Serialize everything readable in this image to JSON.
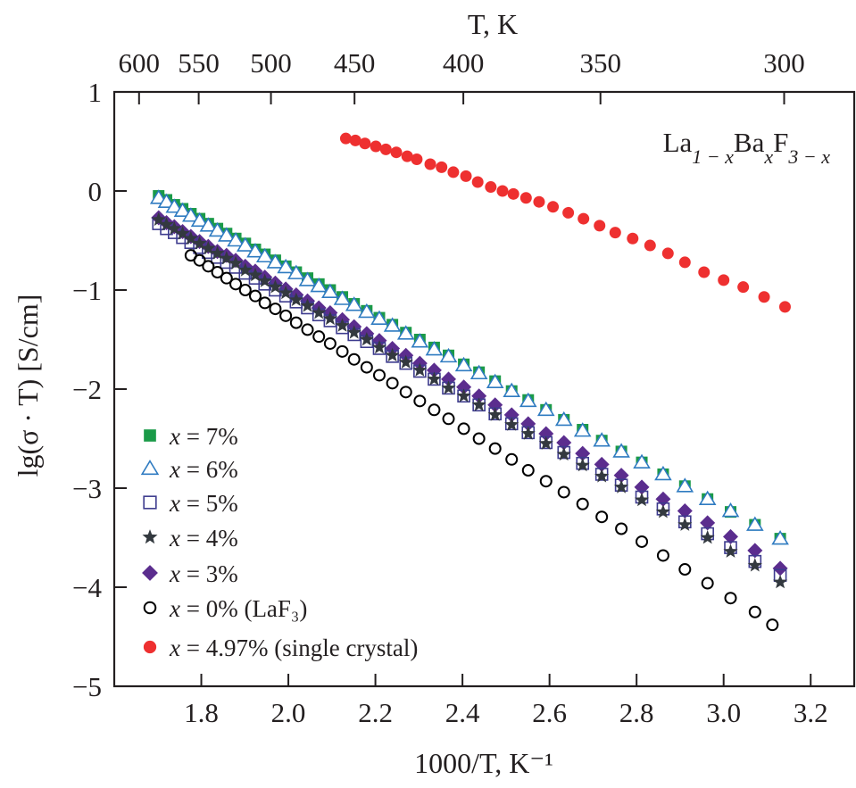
{
  "chart_data": {
    "type": "scatter",
    "title": "",
    "xlabel": "1000/T, K⁻¹",
    "ylabel": "lg(σ · T) [S/cm]",
    "top_xlabel": "T, K",
    "xlim": [
      1.6,
      3.3
    ],
    "ylim": [
      -5,
      1
    ],
    "grid": false,
    "legend_placement": "bottom-left",
    "xticks": [
      "1.8",
      "2.0",
      "2.2",
      "2.4",
      "2.6",
      "2.8",
      "3.0",
      "3.2"
    ],
    "yticks": [
      "1",
      "0",
      "−1",
      "−2",
      "−3",
      "−4",
      "−5"
    ],
    "top_ticks": [
      {
        "label": "600",
        "at": 1.657
      },
      {
        "label": "550",
        "at": 1.794
      },
      {
        "label": "500",
        "at": 1.96
      },
      {
        "label": "450",
        "at": 2.152
      },
      {
        "label": "400",
        "at": 2.402
      },
      {
        "label": "350",
        "at": 2.717
      },
      {
        "label": "300",
        "at": 3.139
      }
    ],
    "annotation": [
      {
        "base": "La",
        "sub": "1 − x"
      },
      {
        "base": "Ba",
        "sub": "x"
      },
      {
        "base": "F",
        "sub": "3 − x"
      }
    ],
    "series": [
      {
        "name": "x = 7%",
        "marker": "square-filled",
        "color": "#1a9a48",
        "x": [
          1.702,
          1.72,
          1.738,
          1.757,
          1.776,
          1.796,
          1.816,
          1.837,
          1.858,
          1.879,
          1.901,
          1.924,
          1.946,
          1.97,
          1.994,
          2.018,
          2.044,
          2.07,
          2.096,
          2.124,
          2.151,
          2.18,
          2.209,
          2.239,
          2.27,
          2.302,
          2.335,
          2.368,
          2.403,
          2.438,
          2.475,
          2.513,
          2.551,
          2.592,
          2.633,
          2.676,
          2.72,
          2.765,
          2.812,
          2.861,
          2.911,
          2.963,
          3.016,
          3.072,
          3.13
        ],
        "y": [
          -0.05,
          -0.09,
          -0.14,
          -0.18,
          -0.23,
          -0.28,
          -0.33,
          -0.38,
          -0.43,
          -0.48,
          -0.53,
          -0.59,
          -0.64,
          -0.7,
          -0.76,
          -0.82,
          -0.88,
          -0.94,
          -1.0,
          -1.07,
          -1.14,
          -1.21,
          -1.28,
          -1.35,
          -1.43,
          -1.5,
          -1.58,
          -1.66,
          -1.75,
          -1.83,
          -1.92,
          -2.02,
          -2.11,
          -2.21,
          -2.31,
          -2.41,
          -2.52,
          -2.63,
          -2.74,
          -2.86,
          -2.98,
          -3.11,
          -3.24,
          -3.37,
          -3.51
        ]
      },
      {
        "name": "x = 6%",
        "marker": "triangle-open",
        "color": "#2f7bc1",
        "x": [
          1.702,
          1.72,
          1.738,
          1.757,
          1.776,
          1.796,
          1.816,
          1.837,
          1.858,
          1.879,
          1.901,
          1.924,
          1.946,
          1.97,
          1.994,
          2.018,
          2.044,
          2.07,
          2.096,
          2.124,
          2.151,
          2.18,
          2.209,
          2.239,
          2.27,
          2.302,
          2.335,
          2.368,
          2.403,
          2.438,
          2.475,
          2.513,
          2.551,
          2.592,
          2.633,
          2.676,
          2.72,
          2.765,
          2.812,
          2.861,
          2.911,
          2.963,
          3.016,
          3.072,
          3.13
        ],
        "y": [
          -0.07,
          -0.11,
          -0.16,
          -0.2,
          -0.25,
          -0.3,
          -0.35,
          -0.4,
          -0.45,
          -0.5,
          -0.55,
          -0.61,
          -0.66,
          -0.72,
          -0.77,
          -0.83,
          -0.9,
          -0.96,
          -1.02,
          -1.09,
          -1.15,
          -1.22,
          -1.29,
          -1.36,
          -1.44,
          -1.52,
          -1.6,
          -1.67,
          -1.76,
          -1.84,
          -1.93,
          -2.02,
          -2.12,
          -2.21,
          -2.31,
          -2.42,
          -2.52,
          -2.63,
          -2.74,
          -2.86,
          -2.98,
          -3.11,
          -3.23,
          -3.37,
          -3.51
        ]
      },
      {
        "name": "x = 5%",
        "marker": "square-open",
        "color": "#3d3b8e",
        "x": [
          1.702,
          1.72,
          1.738,
          1.757,
          1.776,
          1.796,
          1.816,
          1.837,
          1.858,
          1.879,
          1.901,
          1.924,
          1.946,
          1.97,
          1.994,
          2.018,
          2.044,
          2.07,
          2.096,
          2.124,
          2.151,
          2.18,
          2.209,
          2.239,
          2.27,
          2.302,
          2.335,
          2.368,
          2.403,
          2.438,
          2.475,
          2.513,
          2.551,
          2.592,
          2.633,
          2.676,
          2.72,
          2.765,
          2.812,
          2.861,
          2.911,
          2.963,
          3.016,
          3.072,
          3.13
        ],
        "y": [
          -0.33,
          -0.38,
          -0.42,
          -0.47,
          -0.52,
          -0.57,
          -0.62,
          -0.67,
          -0.72,
          -0.77,
          -0.83,
          -0.88,
          -0.94,
          -1.0,
          -1.06,
          -1.12,
          -1.18,
          -1.25,
          -1.31,
          -1.38,
          -1.45,
          -1.52,
          -1.59,
          -1.67,
          -1.74,
          -1.82,
          -1.9,
          -1.99,
          -2.07,
          -2.16,
          -2.25,
          -2.35,
          -2.44,
          -2.54,
          -2.64,
          -2.75,
          -2.86,
          -2.97,
          -3.09,
          -3.21,
          -3.34,
          -3.46,
          -3.6,
          -3.74,
          -3.88
        ]
      },
      {
        "name": "x = 4%",
        "marker": "star-filled",
        "color": "#33393f",
        "x": [
          1.702,
          1.72,
          1.738,
          1.757,
          1.776,
          1.796,
          1.816,
          1.837,
          1.858,
          1.879,
          1.901,
          1.924,
          1.946,
          1.97,
          1.994,
          2.018,
          2.044,
          2.07,
          2.096,
          2.124,
          2.151,
          2.18,
          2.209,
          2.239,
          2.27,
          2.302,
          2.335,
          2.368,
          2.403,
          2.438,
          2.475,
          2.513,
          2.551,
          2.592,
          2.633,
          2.676,
          2.72,
          2.765,
          2.812,
          2.861,
          2.911,
          2.963,
          3.016,
          3.072,
          3.13
        ],
        "y": [
          -0.29,
          -0.34,
          -0.38,
          -0.43,
          -0.48,
          -0.53,
          -0.58,
          -0.63,
          -0.68,
          -0.73,
          -0.8,
          -0.85,
          -0.91,
          -0.97,
          -1.03,
          -1.1,
          -1.16,
          -1.23,
          -1.29,
          -1.36,
          -1.43,
          -1.5,
          -1.58,
          -1.66,
          -1.73,
          -1.81,
          -1.9,
          -1.99,
          -2.07,
          -2.16,
          -2.26,
          -2.36,
          -2.45,
          -2.55,
          -2.66,
          -2.77,
          -2.88,
          -2.99,
          -3.12,
          -3.24,
          -3.37,
          -3.5,
          -3.64,
          -3.78,
          -3.95
        ]
      },
      {
        "name": "x = 3%",
        "marker": "diamond-filled",
        "color": "#5b2d8e",
        "x": [
          1.702,
          1.72,
          1.738,
          1.757,
          1.776,
          1.796,
          1.816,
          1.837,
          1.858,
          1.879,
          1.901,
          1.924,
          1.946,
          1.97,
          1.994,
          2.018,
          2.044,
          2.07,
          2.096,
          2.124,
          2.151,
          2.18,
          2.209,
          2.239,
          2.27,
          2.302,
          2.335,
          2.368,
          2.403,
          2.438,
          2.475,
          2.513,
          2.551,
          2.592,
          2.633,
          2.676,
          2.72,
          2.765,
          2.812,
          2.861,
          2.911,
          2.963,
          3.016,
          3.072,
          3.13
        ],
        "y": [
          -0.27,
          -0.32,
          -0.36,
          -0.41,
          -0.46,
          -0.51,
          -0.56,
          -0.61,
          -0.65,
          -0.7,
          -0.76,
          -0.81,
          -0.87,
          -0.93,
          -0.99,
          -1.05,
          -1.11,
          -1.18,
          -1.23,
          -1.3,
          -1.37,
          -1.44,
          -1.51,
          -1.59,
          -1.66,
          -1.74,
          -1.81,
          -1.9,
          -1.98,
          -2.07,
          -2.16,
          -2.26,
          -2.35,
          -2.45,
          -2.54,
          -2.65,
          -2.76,
          -2.87,
          -2.99,
          -3.11,
          -3.23,
          -3.35,
          -3.49,
          -3.63,
          -3.81
        ]
      },
      {
        "name": "x = 0% (LaF₃)",
        "marker": "circle-open",
        "color": "#000000",
        "x": [
          1.776,
          1.796,
          1.816,
          1.837,
          1.858,
          1.879,
          1.901,
          1.924,
          1.946,
          1.97,
          1.994,
          2.018,
          2.044,
          2.07,
          2.096,
          2.124,
          2.151,
          2.18,
          2.209,
          2.239,
          2.27,
          2.302,
          2.335,
          2.368,
          2.403,
          2.438,
          2.475,
          2.513,
          2.551,
          2.592,
          2.633,
          2.676,
          2.72,
          2.765,
          2.812,
          2.861,
          2.911,
          2.963,
          3.016,
          3.072,
          3.112
        ],
        "y": [
          -0.65,
          -0.7,
          -0.76,
          -0.82,
          -0.88,
          -0.94,
          -1.0,
          -1.06,
          -1.13,
          -1.19,
          -1.26,
          -1.33,
          -1.4,
          -1.47,
          -1.54,
          -1.62,
          -1.7,
          -1.78,
          -1.86,
          -1.94,
          -2.03,
          -2.12,
          -2.21,
          -2.3,
          -2.4,
          -2.5,
          -2.6,
          -2.71,
          -2.82,
          -2.93,
          -3.04,
          -3.16,
          -3.29,
          -3.41,
          -3.54,
          -3.68,
          -3.82,
          -3.96,
          -4.11,
          -4.25,
          -4.38
        ]
      },
      {
        "name": "x = 4.97% (single crystal)",
        "marker": "circle-filled",
        "color": "#ee3030",
        "x": [
          2.132,
          2.154,
          2.176,
          2.201,
          2.224,
          2.248,
          2.273,
          2.295,
          2.326,
          2.352,
          2.379,
          2.408,
          2.435,
          2.465,
          2.492,
          2.517,
          2.546,
          2.576,
          2.608,
          2.643,
          2.678,
          2.715,
          2.751,
          2.791,
          2.831,
          2.872,
          2.911,
          2.955,
          3.0,
          3.045,
          3.093,
          3.141
        ],
        "y": [
          0.53,
          0.51,
          0.48,
          0.45,
          0.42,
          0.39,
          0.35,
          0.32,
          0.27,
          0.24,
          0.19,
          0.15,
          0.09,
          0.04,
          0.0,
          -0.03,
          -0.07,
          -0.11,
          -0.16,
          -0.22,
          -0.28,
          -0.35,
          -0.42,
          -0.48,
          -0.55,
          -0.63,
          -0.72,
          -0.82,
          -0.9,
          -0.97,
          -1.07,
          -1.17
        ]
      }
    ]
  }
}
